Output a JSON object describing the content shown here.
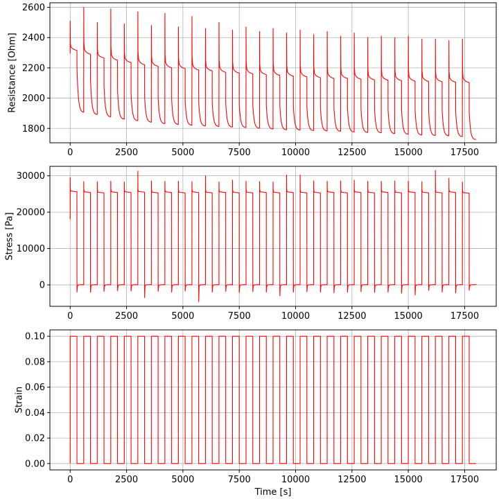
{
  "chart_data": [
    {
      "type": "line",
      "name": "resistance",
      "xlabel": "",
      "ylabel": "Resistance [Ohm]",
      "xlim": [
        -900,
        18900
      ],
      "ylim": [
        1705,
        2630
      ],
      "xticks": [
        0,
        2500,
        5000,
        7500,
        10000,
        12500,
        15000,
        17500
      ],
      "xtick_labels": [
        "0",
        "2500",
        "5000",
        "7500",
        "10000",
        "12500",
        "15000",
        "17500"
      ],
      "yticks": [
        1800,
        2000,
        2200,
        2400,
        2600
      ],
      "ytick_labels": [
        "1800",
        "2000",
        "2200",
        "2400",
        "2600"
      ],
      "grid": true,
      "color": "#ff0000",
      "cycle_period": 600,
      "end_time": 18000,
      "series": [
        {
          "cycle_starts": [
            0,
            600,
            1200,
            1800,
            2400,
            3000,
            3600,
            4200,
            4800,
            5400,
            6000,
            6600,
            7200,
            7800,
            8400,
            9000,
            9600,
            10200,
            10800,
            11400,
            12000,
            12600,
            13200,
            13800,
            14400,
            15000,
            15600,
            16200,
            16800,
            17400
          ],
          "loaded_peak": [
            2510,
            2600,
            2500,
            2590,
            2490,
            2570,
            2480,
            2560,
            2470,
            2540,
            2460,
            2500,
            2450,
            2470,
            2440,
            2460,
            2430,
            2450,
            2420,
            2440,
            2410,
            2430,
            2400,
            2410,
            2400,
            2410,
            2390,
            2390,
            2380,
            2390
          ],
          "loaded_end": [
            2315,
            2290,
            2265,
            2250,
            2235,
            2220,
            2210,
            2200,
            2195,
            2185,
            2180,
            2170,
            2165,
            2160,
            2155,
            2150,
            2145,
            2140,
            2135,
            2130,
            2130,
            2125,
            2120,
            2118,
            2115,
            2112,
            2110,
            2108,
            2105,
            2102
          ],
          "unloaded_drop": [
            2200,
            2120,
            2080,
            2050,
            2030,
            2010,
            2000,
            1990,
            1980,
            1975,
            1970,
            1965,
            1960,
            1955,
            1950,
            1950,
            1945,
            1940,
            1938,
            1935,
            1933,
            1930,
            1928,
            1925,
            1922,
            1920,
            1918,
            1916,
            1914,
            1910
          ],
          "unloaded_end": [
            1905,
            1890,
            1875,
            1860,
            1850,
            1840,
            1830,
            1825,
            1820,
            1815,
            1812,
            1808,
            1805,
            1800,
            1795,
            1790,
            1788,
            1785,
            1782,
            1780,
            1775,
            1772,
            1770,
            1765,
            1760,
            1755,
            1752,
            1750,
            1745,
            1725
          ]
        }
      ]
    },
    {
      "type": "line",
      "name": "stress",
      "xlabel": "",
      "ylabel": "Stress [Pa]",
      "xlim": [
        -900,
        18900
      ],
      "ylim": [
        -5900,
        32600
      ],
      "xticks": [
        0,
        2500,
        5000,
        7500,
        10000,
        12500,
        15000,
        17500
      ],
      "xtick_labels": [
        "0",
        "2500",
        "5000",
        "7500",
        "10000",
        "12500",
        "15000",
        "17500"
      ],
      "yticks": [
        0,
        10000,
        20000,
        30000
      ],
      "ytick_labels": [
        "0",
        "10000",
        "20000",
        "30000"
      ],
      "grid": true,
      "color": "#ff0000",
      "series": [
        {
          "cycle_starts": [
            0,
            600,
            1200,
            1800,
            2400,
            3000,
            3600,
            4200,
            4800,
            5400,
            6000,
            6600,
            7200,
            7800,
            8400,
            9000,
            9600,
            10200,
            10800,
            11400,
            12000,
            12600,
            13200,
            13800,
            14400,
            15000,
            15600,
            16200,
            16800,
            17400
          ],
          "loaded_spike": [
            29500,
            28400,
            28400,
            28500,
            28300,
            31300,
            28600,
            28500,
            28500,
            28400,
            30000,
            28300,
            28800,
            28500,
            28400,
            28300,
            30200,
            30200,
            28600,
            28500,
            28600,
            28800,
            28500,
            28500,
            28600,
            28500,
            28400,
            31500,
            29300,
            28300
          ],
          "loaded_level": [
            25800,
            25600,
            25500,
            25600,
            25600,
            25700,
            25500,
            25600,
            25500,
            25600,
            25500,
            25600,
            25500,
            25500,
            25600,
            25500,
            25600,
            25500,
            25500,
            25600,
            25500,
            25600,
            25500,
            25600,
            25500,
            25600,
            25500,
            25500,
            25600,
            25400
          ],
          "unloaded_dip": [
            -2000,
            -2000,
            -1800,
            -1600,
            -1700,
            -3500,
            -1800,
            -2000,
            -1700,
            -4600,
            -2000,
            -1800,
            -2100,
            -1900,
            -2000,
            -3000,
            -2000,
            -1900,
            -2000,
            -2200,
            -2000,
            -1900,
            -2100,
            -2000,
            -2300,
            -2800,
            -1500,
            -2000,
            -2200,
            -1500
          ],
          "unloaded_level": 0
        }
      ]
    },
    {
      "type": "line",
      "name": "strain",
      "xlabel": "Time [s]",
      "ylabel": "Strain",
      "xlim": [
        -900,
        18900
      ],
      "ylim": [
        -0.005,
        0.105
      ],
      "xticks": [
        0,
        2500,
        5000,
        7500,
        10000,
        12500,
        15000,
        17500
      ],
      "xtick_labels": [
        "0",
        "2500",
        "5000",
        "7500",
        "10000",
        "12500",
        "15000",
        "17500"
      ],
      "yticks": [
        0.0,
        0.02,
        0.04,
        0.06,
        0.08,
        0.1
      ],
      "ytick_labels": [
        "0.00",
        "0.02",
        "0.04",
        "0.06",
        "0.08",
        "0.10"
      ],
      "grid": true,
      "color": "#ff0000",
      "series": [
        {
          "levels": [
            0,
            0.1
          ],
          "cycle_starts": [
            0,
            600,
            1200,
            1800,
            2400,
            3000,
            3600,
            4200,
            4800,
            5400,
            6000,
            6600,
            7200,
            7800,
            8400,
            9000,
            9600,
            10200,
            10800,
            11400,
            12000,
            12600,
            13200,
            13800,
            14400,
            15000,
            15600,
            16200,
            16800,
            17400
          ]
        }
      ]
    }
  ]
}
